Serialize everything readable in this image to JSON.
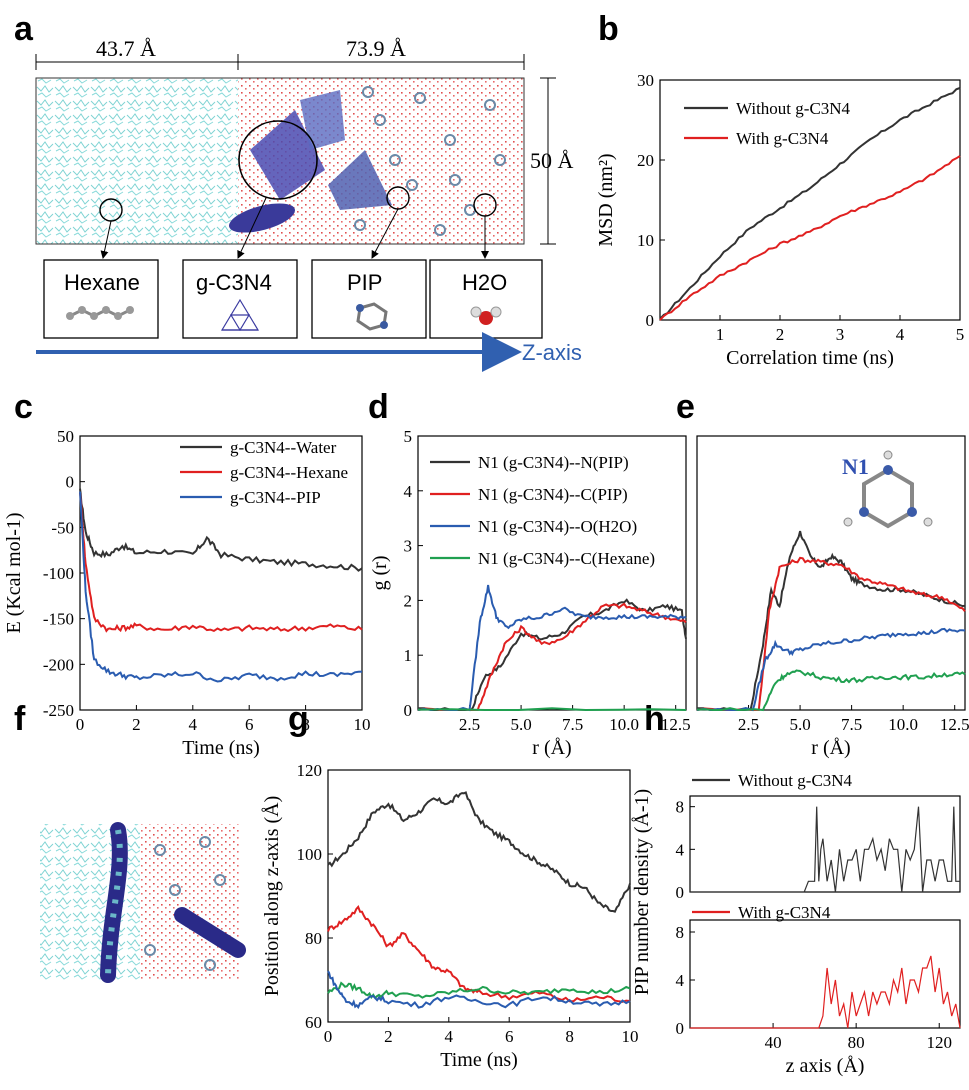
{
  "panel_labels": [
    "a",
    "b",
    "c",
    "d",
    "e",
    "f",
    "g",
    "h"
  ],
  "panel_a": {
    "dim_left": "43.7 Å",
    "dim_right": "73.9 Å",
    "dim_height": "50 Å",
    "boxes": [
      "Hexane",
      "g-C3N4",
      "PIP",
      "H2O"
    ],
    "axis_label": "Z-axis",
    "colors": {
      "hexane": "#7fd3d3",
      "water": "#e05050",
      "gcn": "#3a3aa0",
      "arrow": "#3060b0"
    }
  },
  "chart_data": [
    {
      "id": "b",
      "type": "line",
      "xlabel": "Correlation time (ns)",
      "ylabel": "MSD (nm²)",
      "xlim": [
        0,
        5
      ],
      "ylim": [
        0,
        30
      ],
      "xticks": [
        1,
        2,
        3,
        4,
        5
      ],
      "yticks": [
        0,
        10,
        20,
        30
      ],
      "legend": "top-left",
      "series": [
        {
          "name": "Without g-C3N4",
          "color": "#333333",
          "x": [
            0,
            0.5,
            1,
            1.5,
            2,
            2.5,
            3,
            3.5,
            4,
            4.5,
            5
          ],
          "y": [
            0,
            4,
            8,
            11.5,
            14,
            16.5,
            19.5,
            22.5,
            25,
            27,
            29
          ]
        },
        {
          "name": "With g-C3N4",
          "color": "#e02020",
          "x": [
            0,
            0.5,
            1,
            1.5,
            2,
            2.5,
            3,
            3.5,
            4,
            4.5,
            5
          ],
          "y": [
            0,
            3,
            5.5,
            7.5,
            9.5,
            11,
            13,
            14.5,
            16,
            18,
            20.5
          ]
        }
      ]
    },
    {
      "id": "c",
      "type": "line",
      "xlabel": "Time (ns)",
      "ylabel": "E (Kcal mol-1)",
      "xlim": [
        0,
        10
      ],
      "ylim": [
        -250,
        50
      ],
      "xticks": [
        0,
        2,
        4,
        6,
        8,
        10
      ],
      "yticks": [
        -250,
        -200,
        -150,
        -100,
        -50,
        0,
        50
      ],
      "legend": "top-right",
      "series": [
        {
          "name": "g-C3N4--Water",
          "color": "#333333",
          "x": [
            0,
            0.2,
            0.5,
            1,
            1.5,
            2,
            3,
            4,
            4.5,
            5,
            6,
            7,
            8,
            9,
            10
          ],
          "y": [
            -10,
            -55,
            -78,
            -80,
            -70,
            -78,
            -76,
            -80,
            -62,
            -80,
            -85,
            -88,
            -90,
            -92,
            -95
          ]
        },
        {
          "name": "g-C3N4--Hexane",
          "color": "#e02020",
          "x": [
            0,
            0.2,
            0.5,
            1,
            1.5,
            2,
            3,
            4,
            5,
            6,
            7,
            8,
            9,
            10
          ],
          "y": [
            -10,
            -90,
            -150,
            -162,
            -160,
            -158,
            -162,
            -158,
            -163,
            -160,
            -162,
            -160,
            -158,
            -162
          ]
        },
        {
          "name": "g-C3N4--PIP",
          "color": "#2a5cb0",
          "x": [
            0,
            0.2,
            0.5,
            1,
            1.5,
            2,
            3,
            4,
            5,
            6,
            7,
            8,
            9,
            10
          ],
          "y": [
            -10,
            -120,
            -195,
            -208,
            -212,
            -215,
            -212,
            -210,
            -218,
            -212,
            -215,
            -210,
            -212,
            -208
          ]
        }
      ]
    },
    {
      "id": "d",
      "type": "line",
      "xlabel": "r (Å)",
      "ylabel": "g (r)",
      "xlim": [
        0,
        13
      ],
      "ylim": [
        0,
        5
      ],
      "xticks": [
        2.5,
        5.0,
        7.5,
        10.0,
        12.5
      ],
      "yticks": [
        0,
        1,
        2,
        3,
        4,
        5
      ],
      "legend": "top-left",
      "series": [
        {
          "name": "N1 (g-C3N4)--N(PIP)",
          "color": "#333333",
          "x": [
            0,
            2.6,
            3.2,
            4,
            5,
            6,
            7,
            8,
            9,
            10,
            11,
            12,
            12.8,
            13
          ],
          "y": [
            0,
            0,
            0.6,
            0.8,
            1.4,
            1.3,
            1.4,
            1.7,
            1.8,
            2.0,
            1.8,
            1.9,
            1.8,
            1.3
          ]
        },
        {
          "name": "N1 (g-C3N4)--C(PIP)",
          "color": "#e02020",
          "x": [
            0,
            2.9,
            3.5,
            4.2,
            5,
            6,
            7,
            8,
            9,
            10,
            11,
            12,
            13
          ],
          "y": [
            0,
            0,
            0.6,
            1.2,
            1.5,
            1.2,
            1.3,
            1.6,
            1.9,
            1.9,
            1.8,
            1.7,
            1.6
          ]
        },
        {
          "name": "N1 (g-C3N4)--O(H2O)",
          "color": "#2a5cb0",
          "x": [
            0,
            2.5,
            3.0,
            3.4,
            3.8,
            4.3,
            5,
            6,
            7,
            8,
            9,
            10,
            11,
            12,
            13
          ],
          "y": [
            0,
            0,
            1.6,
            2.25,
            1.7,
            1.5,
            1.65,
            1.7,
            1.85,
            1.7,
            1.7,
            1.7,
            1.7,
            1.7,
            1.7
          ]
        },
        {
          "name": "N1 (g-C3N4)--C(Hexane)",
          "color": "#20a050",
          "x": [
            0,
            13
          ],
          "y": [
            0,
            0
          ]
        }
      ]
    },
    {
      "id": "e",
      "type": "line",
      "xlabel": "r (Å)",
      "xlim": [
        0,
        13
      ],
      "ylim": [
        0,
        5
      ],
      "xticks": [
        2.5,
        5.0,
        7.5,
        10.0,
        12.5
      ],
      "annotation": "N1",
      "series": [
        {
          "name": "N1 (g-C3N4)--N(PIP)",
          "color": "#333333",
          "x": [
            0,
            2.6,
            3.2,
            3.6,
            4,
            4.5,
            5,
            5.5,
            6,
            6.5,
            7,
            7.5,
            8,
            9,
            10,
            11,
            12,
            13
          ],
          "y": [
            0,
            0,
            1.2,
            2.2,
            1.9,
            2.8,
            3.25,
            2.8,
            2.6,
            2.8,
            2.7,
            2.4,
            2.3,
            2.2,
            2.2,
            2.1,
            2.0,
            1.9
          ]
        },
        {
          "name": "N1 (g-C3N4)--C(PIP)",
          "color": "#e02020",
          "x": [
            0,
            3.0,
            3.5,
            4,
            5,
            6,
            7,
            8,
            9,
            10,
            11,
            12,
            13
          ],
          "y": [
            0,
            0,
            1.8,
            2.6,
            2.75,
            2.7,
            2.65,
            2.4,
            2.3,
            2.2,
            2.1,
            2.05,
            1.8
          ]
        },
        {
          "name": "N1 (g-C3N4)--O(H2O)",
          "color": "#2a5cb0",
          "x": [
            0,
            2.7,
            3.3,
            3.8,
            4.5,
            5,
            6,
            7,
            8,
            9,
            10,
            11,
            12,
            13
          ],
          "y": [
            0,
            0,
            0.9,
            1.2,
            1.05,
            1.1,
            1.2,
            1.25,
            1.3,
            1.35,
            1.4,
            1.4,
            1.45,
            1.45
          ]
        },
        {
          "name": "N1 (g-C3N4)--C(Hexane)",
          "color": "#20a050",
          "x": [
            0,
            3.2,
            3.8,
            4.3,
            5,
            6,
            7,
            8,
            9,
            10,
            11,
            12,
            13
          ],
          "y": [
            0,
            0,
            0.5,
            0.65,
            0.7,
            0.6,
            0.55,
            0.55,
            0.6,
            0.6,
            0.6,
            0.65,
            0.65
          ]
        }
      ]
    },
    {
      "id": "g",
      "type": "line",
      "xlabel": "Time (ns)",
      "ylabel": "Position along z-axis (Å)",
      "xlim": [
        0,
        10
      ],
      "ylim": [
        60,
        120
      ],
      "xticks": [
        0,
        2,
        4,
        6,
        8,
        10
      ],
      "yticks": [
        60,
        80,
        100,
        120
      ],
      "series": [
        {
          "color": "#333333",
          "x": [
            0,
            0.5,
            1,
            1.5,
            2,
            2.5,
            3,
            3.5,
            4,
            4.5,
            5,
            5.5,
            6,
            6.5,
            7,
            7.5,
            8,
            8.5,
            9,
            9.5,
            10
          ],
          "y": [
            97,
            100,
            104,
            110,
            112,
            108,
            110,
            113,
            112,
            115,
            108,
            105,
            103,
            100,
            98,
            96,
            93,
            92,
            88,
            86,
            93
          ]
        },
        {
          "color": "#e02020",
          "x": [
            0,
            0.5,
            1,
            1.5,
            2,
            2.5,
            3,
            3.5,
            4,
            4.5,
            5,
            6,
            7,
            8,
            9,
            10
          ],
          "y": [
            82,
            84,
            87,
            83,
            78,
            81,
            77,
            73,
            72,
            68,
            67,
            66,
            67,
            65,
            66,
            65
          ]
        },
        {
          "color": "#20a050",
          "x": [
            0,
            0.5,
            1,
            1.5,
            2,
            3,
            4,
            5,
            6,
            7,
            8,
            9,
            10
          ],
          "y": [
            67,
            69,
            68,
            66,
            67,
            66,
            67,
            68,
            67,
            67,
            68,
            67,
            68
          ]
        },
        {
          "color": "#2a5cb0",
          "x": [
            0,
            0.3,
            0.6,
            1,
            1.5,
            2,
            3,
            4,
            5,
            6,
            7,
            8,
            9,
            10
          ],
          "y": [
            72,
            68,
            65,
            64,
            66,
            65,
            64,
            66,
            65,
            64,
            66,
            65,
            64,
            65
          ]
        }
      ]
    },
    {
      "id": "h-top",
      "type": "line",
      "ylabel": "PIP number density (Å-1)",
      "xlim": [
        0,
        130
      ],
      "ylim": [
        0,
        9
      ],
      "yticks": [
        0,
        4,
        8
      ],
      "legend": "top",
      "series": [
        {
          "name": "Without g-C3N4",
          "color": "#333333",
          "x": [
            0,
            55,
            57,
            60,
            61,
            62,
            63,
            64,
            66,
            68,
            70,
            72,
            74,
            76,
            78,
            80,
            82,
            84,
            86,
            88,
            90,
            92,
            94,
            96,
            98,
            100,
            102,
            104,
            106,
            108,
            110,
            112,
            114,
            116,
            118,
            120,
            122,
            124,
            126,
            127,
            128,
            130
          ],
          "y": [
            0,
            0,
            1,
            1,
            8,
            1,
            4,
            5,
            1,
            3,
            0,
            4,
            1,
            3,
            3,
            4,
            1,
            4,
            4,
            5,
            3,
            4,
            2,
            5,
            4,
            4,
            0,
            4,
            3,
            4,
            8,
            0,
            3,
            3,
            1,
            3,
            3,
            1,
            1,
            8,
            1,
            1
          ]
        }
      ]
    },
    {
      "id": "h-bottom",
      "type": "line",
      "xlabel": "z axis (Å)",
      "xlim": [
        0,
        130
      ],
      "ylim": [
        0,
        9
      ],
      "xticks": [
        40,
        80,
        120
      ],
      "yticks": [
        0,
        4,
        8
      ],
      "legend": "top",
      "series": [
        {
          "name": "With g-C3N4",
          "color": "#e02020",
          "x": [
            0,
            62,
            64,
            66,
            68,
            70,
            72,
            74,
            76,
            78,
            80,
            82,
            84,
            86,
            88,
            90,
            92,
            94,
            96,
            98,
            100,
            102,
            104,
            106,
            108,
            110,
            112,
            114,
            116,
            118,
            120,
            122,
            124,
            126,
            128,
            130
          ],
          "y": [
            0,
            0,
            1,
            5,
            2,
            4,
            1,
            2,
            0,
            3,
            1,
            2,
            3,
            1,
            3,
            2,
            3,
            3,
            2,
            4,
            3,
            5,
            2,
            4,
            4,
            3,
            5,
            5,
            6,
            3,
            5,
            2,
            3,
            1,
            2,
            0
          ]
        }
      ]
    }
  ]
}
